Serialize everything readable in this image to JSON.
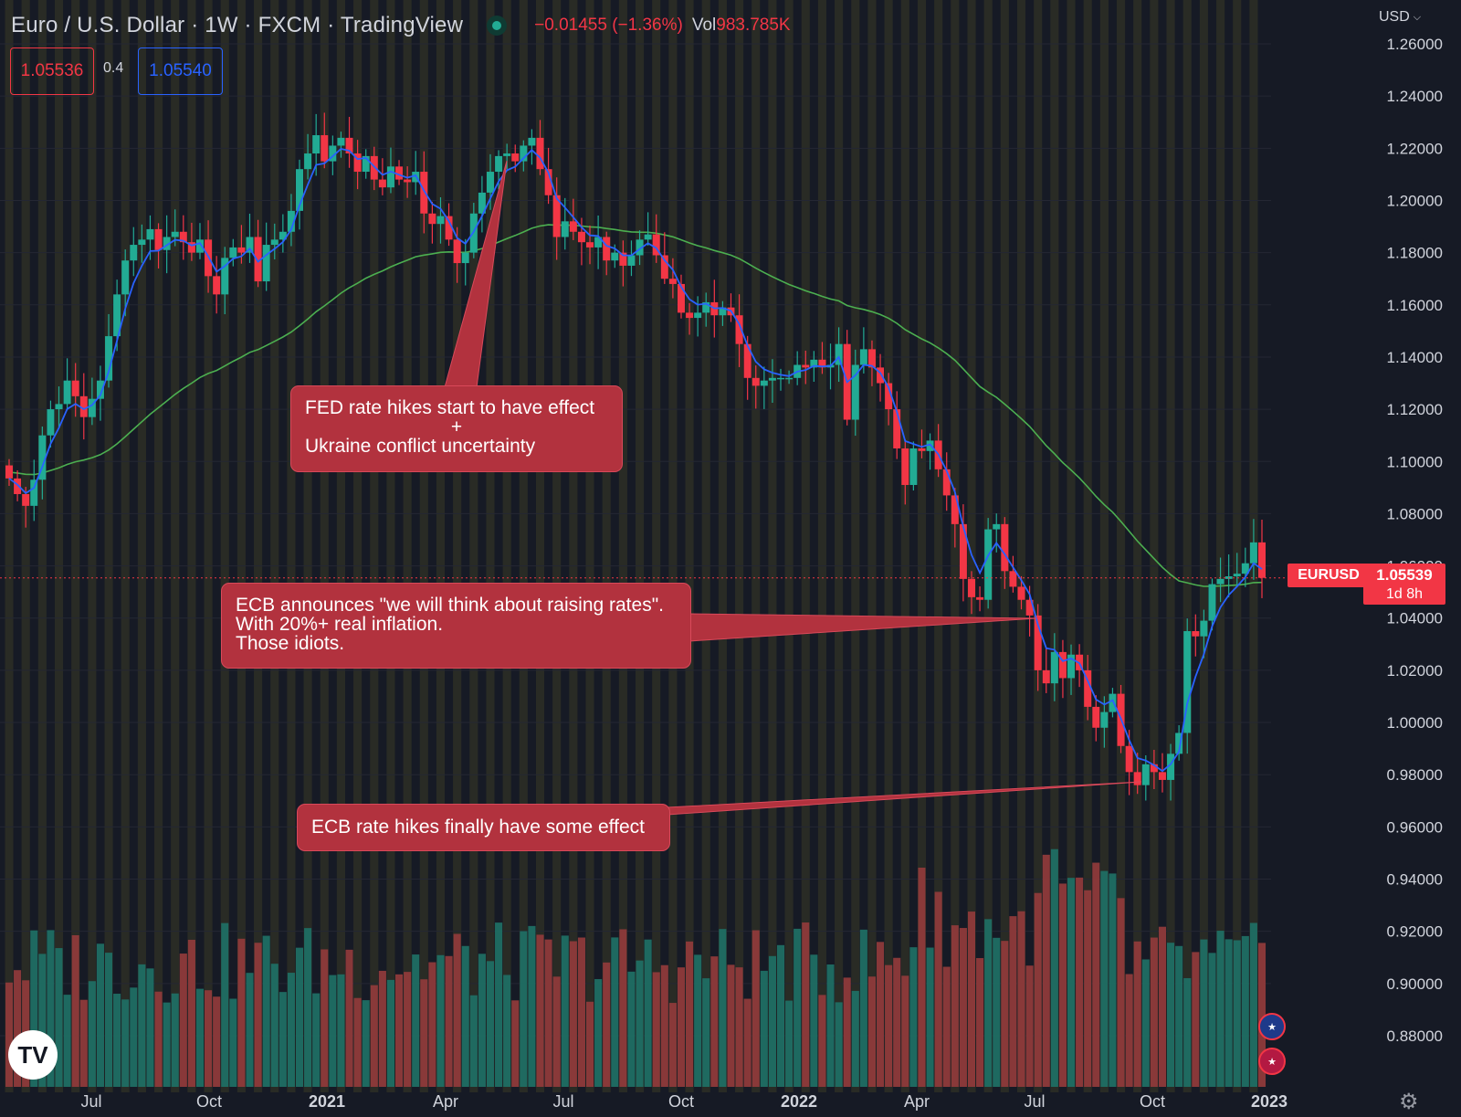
{
  "header": {
    "title": "Euro / U.S. Dollar · 1W · FXCM · TradingView",
    "change": "−0.01455 (−1.36%)",
    "volume_label": "Vol",
    "volume_value": "983.785K",
    "sell_price": "1.05536",
    "spread": "0.4",
    "buy_price": "1.05540",
    "currency": "USD"
  },
  "price_tag": {
    "symbol": "EURUSD",
    "price": "1.05539",
    "countdown": "1d 8h"
  },
  "annotations": [
    {
      "lines": [
        "FED rate hikes start to have effect",
        "+",
        "Ukraine conflict uncertainty"
      ]
    },
    {
      "lines": [
        "ECB announces \"we will think about raising rates\".",
        "With 20%+ real inflation.",
        "Those idiots."
      ]
    },
    {
      "lines": [
        "ECB rate hikes finally have some effect"
      ]
    }
  ],
  "colors": {
    "background": "#161a25",
    "up": "#22ab94",
    "down": "#f23645",
    "ema_fast": "#2962ff",
    "ema_slow": "#4caf50",
    "session_band": "#3a3a26",
    "callout": "#b2323e"
  },
  "icons": {
    "logo": "tradingview-logo-icon",
    "eu_flag": "eu-flag-icon",
    "us_flag": "us-flag-icon",
    "settings": "gear-icon",
    "chevron": "chevron-down-icon"
  },
  "chart_data": {
    "type": "candlestick",
    "symbol": "EURUSD",
    "interval": "1W",
    "x_tick_labels": [
      "Jul",
      "Oct",
      "2021",
      "Apr",
      "Jul",
      "Oct",
      "2022",
      "Apr",
      "Jul",
      "Oct",
      "2023"
    ],
    "y_tick_labels": [
      "1.26000",
      "1.24000",
      "1.22000",
      "1.20000",
      "1.18000",
      "1.16000",
      "1.14000",
      "1.12000",
      "1.10000",
      "1.08000",
      "1.06000",
      "1.04000",
      "1.02000",
      "1.00000",
      "0.98000",
      "0.96000",
      "0.94000",
      "0.92000",
      "0.90000",
      "0.88000"
    ],
    "ylim": [
      0.87,
      1.265
    ],
    "last_price": 1.05539,
    "grid": true,
    "series": [
      {
        "type": "candles",
        "close": [
          1.0935,
          1.0875,
          1.083,
          1.093,
          1.11,
          1.12,
          1.122,
          1.131,
          1.125,
          1.117,
          1.124,
          1.131,
          1.148,
          1.164,
          1.177,
          1.183,
          1.185,
          1.189,
          1.181,
          1.186,
          1.188,
          1.184,
          1.18,
          1.185,
          1.171,
          1.164,
          1.178,
          1.182,
          1.18,
          1.186,
          1.169,
          1.183,
          1.185,
          1.188,
          1.196,
          1.212,
          1.218,
          1.225,
          1.215,
          1.221,
          1.224,
          1.218,
          1.211,
          1.217,
          1.208,
          1.205,
          1.213,
          1.208,
          1.207,
          1.211,
          1.195,
          1.191,
          1.194,
          1.185,
          1.176,
          1.18,
          1.195,
          1.203,
          1.211,
          1.217,
          1.218,
          1.215,
          1.221,
          1.224,
          1.212,
          1.202,
          1.186,
          1.192,
          1.188,
          1.184,
          1.182,
          1.186,
          1.177,
          1.18,
          1.175,
          1.179,
          1.185,
          1.187,
          1.179,
          1.17,
          1.168,
          1.157,
          1.155,
          1.157,
          1.161,
          1.156,
          1.159,
          1.156,
          1.145,
          1.132,
          1.129,
          1.131,
          1.132,
          1.132,
          1.132,
          1.137,
          1.136,
          1.139,
          1.136,
          1.137,
          1.145,
          1.116,
          1.137,
          1.143,
          1.136,
          1.13,
          1.12,
          1.105,
          1.091,
          1.105,
          1.104,
          1.108,
          1.097,
          1.087,
          1.076,
          1.055,
          1.048,
          1.047,
          1.074,
          1.076,
          1.058,
          1.052,
          1.047,
          1.041,
          1.02,
          1.015,
          1.027,
          1.017,
          1.026,
          1.02,
          1.006,
          0.998,
          1.004,
          1.011,
          0.991,
          0.981,
          0.976,
          0.984,
          0.981,
          0.978,
          0.988,
          0.996,
          1.035,
          1.033,
          1.039,
          1.053,
          1.055,
          1.056,
          1.057,
          1.061,
          1.069,
          1.0554
        ]
      }
    ]
  }
}
